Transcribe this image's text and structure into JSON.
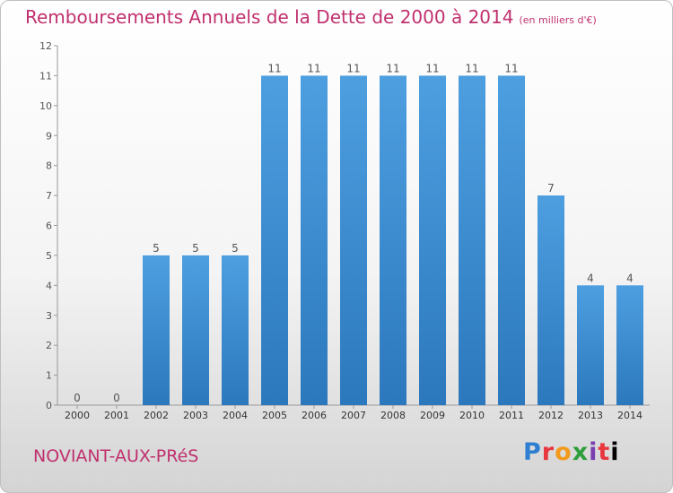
{
  "chart_data": {
    "type": "bar",
    "title": "Remboursements Annuels de la Dette de 2000 à 2014",
    "subtitle": "(en milliers d'€)",
    "categories": [
      "2000",
      "2001",
      "2002",
      "2003",
      "2004",
      "2005",
      "2006",
      "2007",
      "2008",
      "2009",
      "2010",
      "2011",
      "2012",
      "2013",
      "2014"
    ],
    "values": [
      0,
      0,
      5,
      5,
      5,
      11,
      11,
      11,
      11,
      11,
      11,
      11,
      7,
      4,
      4
    ],
    "ylim": [
      0,
      12
    ],
    "yticks": [
      0,
      1,
      2,
      3,
      4,
      5,
      6,
      7,
      8,
      9,
      10,
      11,
      12
    ],
    "grid": false,
    "bar_color": "#4d9fe0",
    "bar_color_dark": "#2c78bd"
  },
  "footer": {
    "commune": "NOVIANT-AUX-PRéS"
  },
  "logo": {
    "text": "Proxiti"
  },
  "colors": {
    "title": "#c0306e",
    "label": "#555555"
  }
}
